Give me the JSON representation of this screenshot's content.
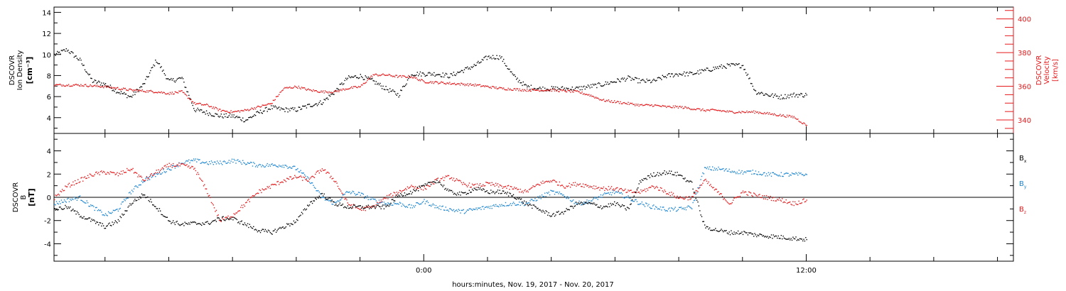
{
  "xlabel": "hours:minutes, Nov. 19, 2017 - Nov. 20, 2017",
  "colors": {
    "black": "#000000",
    "red": "#e41a1c",
    "blue": "#1c86d1"
  },
  "chart_data": [
    {
      "type": "scatter",
      "title": "",
      "ylabel_left": [
        "DSCOVR",
        "Ion Density",
        "[cm⁻³]"
      ],
      "ylabel_right": [
        "DSCOVR",
        "Velocity",
        "[km/s]"
      ],
      "x_unit": "hours relative to 00:00 Nov. 20, 2017",
      "xlim": [
        -11.6,
        18.5
      ],
      "x_ticks": [
        0,
        12
      ],
      "x_tick_labels": [
        "0:00",
        "12:00"
      ],
      "ylim_left": [
        2.5,
        14.5
      ],
      "y_ticks_left": [
        4,
        6,
        8,
        10,
        12,
        14
      ],
      "ylim_right": [
        332,
        407
      ],
      "y_ticks_right": [
        340,
        360,
        380,
        400
      ],
      "series": [
        {
          "name": "Ion Density",
          "axis": "left",
          "color": "#000000",
          "x": [
            -11.6,
            -11.2,
            -10.8,
            -10.4,
            -10.0,
            -9.6,
            -9.2,
            -8.8,
            -8.4,
            -8.0,
            -7.6,
            -7.2,
            -6.8,
            -6.4,
            -6.0,
            -5.6,
            -5.2,
            -4.8,
            -4.4,
            -4.0,
            -3.6,
            -3.2,
            -2.8,
            -2.4,
            -2.0,
            -1.6,
            -1.2,
            -0.8,
            -0.4,
            0.0,
            0.4,
            0.8,
            1.2,
            1.6,
            2.0,
            2.4,
            2.8,
            3.2,
            3.6,
            4.0,
            4.4,
            4.8,
            5.2,
            5.6,
            6.0,
            6.4,
            6.8,
            7.2,
            7.6,
            8.0,
            8.4,
            8.8,
            9.2,
            9.6,
            10.0,
            10.4,
            10.8,
            11.2,
            11.6,
            12.0
          ],
          "y": [
            10.0,
            10.5,
            9.5,
            7.5,
            7.2,
            6.5,
            6.0,
            7.2,
            9.5,
            7.5,
            7.8,
            4.8,
            4.5,
            4.2,
            4.2,
            3.8,
            4.5,
            5.0,
            4.8,
            4.8,
            5.2,
            5.5,
            6.5,
            7.8,
            8.0,
            7.5,
            6.8,
            6.2,
            8.2,
            8.2,
            8.2,
            8.0,
            8.5,
            9.0,
            9.8,
            9.8,
            8.0,
            7.0,
            6.8,
            6.8,
            6.8,
            6.8,
            7.0,
            7.2,
            7.5,
            7.8,
            7.5,
            7.5,
            8.0,
            8.2,
            8.2,
            8.5,
            8.8,
            9.0,
            9.0,
            6.5,
            6.2,
            6.0,
            6.2,
            6.2
          ]
        },
        {
          "name": "Velocity",
          "axis": "right",
          "color": "#e41a1c",
          "x": [
            -11.6,
            -10.8,
            -10.0,
            -9.2,
            -8.4,
            -8.0,
            -7.6,
            -7.2,
            -6.8,
            -6.4,
            -6.0,
            -5.6,
            -5.2,
            -4.8,
            -4.4,
            -4.0,
            -3.6,
            -3.2,
            -2.8,
            -2.4,
            -2.0,
            -1.6,
            -1.2,
            -0.8,
            -0.4,
            0.0,
            0.8,
            1.6,
            2.4,
            3.2,
            4.0,
            4.8,
            5.2,
            5.6,
            6.0,
            6.4,
            6.8,
            7.2,
            7.6,
            8.0,
            8.4,
            8.8,
            9.2,
            9.6,
            10.0,
            10.4,
            10.8,
            11.2,
            11.6,
            12.0
          ],
          "y": [
            361,
            361,
            360,
            358,
            357,
            356,
            357,
            350,
            349,
            346,
            345,
            346,
            348,
            350,
            359,
            360,
            358,
            357,
            357,
            359,
            360,
            367,
            367,
            366,
            366,
            363,
            362,
            361,
            359,
            358,
            358,
            357,
            355,
            352,
            351,
            350,
            349,
            349,
            348,
            348,
            347,
            346,
            346,
            345,
            345,
            345,
            344,
            343,
            342,
            337
          ]
        }
      ]
    },
    {
      "type": "scatter",
      "title": "",
      "ylabel_left": [
        "DSCOVR",
        "B",
        "[nT]"
      ],
      "x_unit": "hours relative to 00:00 Nov. 20, 2017",
      "xlim": [
        -11.6,
        18.5
      ],
      "x_ticks": [
        0,
        12
      ],
      "x_tick_labels": [
        "0:00",
        "12:00"
      ],
      "ylim": [
        -5.5,
        5.5
      ],
      "y_ticks": [
        -4,
        -2,
        0,
        2,
        4
      ],
      "zero_line": true,
      "legend": [
        {
          "label": "B",
          "sub": "x",
          "color": "#000000"
        },
        {
          "label": "B",
          "sub": "y",
          "color": "#1c86d1"
        },
        {
          "label": "B",
          "sub": "z",
          "color": "#e41a1c"
        }
      ],
      "series": [
        {
          "name": "Bx",
          "color": "#000000",
          "x": [
            -11.6,
            -11.2,
            -10.8,
            -10.4,
            -10.0,
            -9.6,
            -9.2,
            -8.8,
            -8.4,
            -8.0,
            -7.6,
            -7.2,
            -6.8,
            -6.4,
            -6.0,
            -5.6,
            -5.2,
            -4.8,
            -4.4,
            -4.0,
            -3.6,
            -3.2,
            -2.8,
            -2.4,
            -2.0,
            -1.6,
            -1.2,
            -0.8,
            -0.4,
            0.0,
            0.4,
            0.8,
            1.2,
            1.6,
            2.0,
            2.4,
            2.8,
            3.2,
            3.6,
            4.0,
            4.4,
            4.8,
            5.2,
            5.6,
            6.0,
            6.4,
            6.8,
            7.2,
            7.6,
            8.0,
            8.4,
            8.8,
            9.2,
            9.6,
            10.0,
            10.4,
            10.8,
            11.2,
            11.6,
            12.0
          ],
          "y": [
            -1.0,
            -0.8,
            -1.5,
            -2.0,
            -2.5,
            -2.0,
            -0.5,
            0.3,
            -0.8,
            -2.0,
            -2.3,
            -2.2,
            -2.2,
            -1.8,
            -1.8,
            -2.3,
            -2.8,
            -3.0,
            -2.5,
            -2.0,
            -0.5,
            0.3,
            -0.5,
            -0.8,
            -0.8,
            -0.8,
            -0.8,
            0.2,
            0.5,
            1.0,
            1.5,
            0.5,
            0.3,
            0.8,
            0.5,
            0.5,
            0.2,
            -0.5,
            -1.0,
            -1.5,
            -1.2,
            -0.5,
            -0.5,
            -0.8,
            -0.5,
            -1.0,
            1.5,
            2.0,
            2.2,
            2.0,
            1.2,
            -2.5,
            -2.8,
            -3.0,
            -3.0,
            -3.2,
            -3.3,
            -3.4,
            -3.5,
            -3.6
          ]
        },
        {
          "name": "By",
          "color": "#1c86d1",
          "x": [
            -11.6,
            -11.2,
            -10.8,
            -10.4,
            -10.0,
            -9.6,
            -9.2,
            -8.8,
            -8.4,
            -8.0,
            -7.6,
            -7.2,
            -6.8,
            -6.4,
            -6.0,
            -5.6,
            -5.2,
            -4.8,
            -4.4,
            -4.0,
            -3.6,
            -3.2,
            -2.8,
            -2.4,
            -2.0,
            -1.6,
            -1.2,
            -0.8,
            -0.4,
            0.0,
            0.4,
            0.8,
            1.2,
            1.6,
            2.0,
            2.4,
            2.8,
            3.2,
            3.6,
            4.0,
            4.4,
            4.8,
            5.2,
            5.6,
            6.0,
            6.4,
            6.8,
            7.2,
            7.6,
            8.0,
            8.4,
            8.8,
            9.2,
            9.6,
            10.0,
            10.4,
            10.8,
            11.2,
            11.6,
            12.0
          ],
          "y": [
            -0.5,
            -0.2,
            0.0,
            -0.8,
            -1.5,
            -1.0,
            0.5,
            1.5,
            2.0,
            2.5,
            3.0,
            3.2,
            3.0,
            3.0,
            3.2,
            3.0,
            2.8,
            2.8,
            2.8,
            2.5,
            1.5,
            0.0,
            -0.5,
            0.5,
            0.3,
            -0.2,
            -0.5,
            -0.5,
            -0.8,
            -0.3,
            -0.8,
            -1.0,
            -1.2,
            -1.0,
            -0.8,
            -0.6,
            -0.5,
            -0.5,
            0.0,
            0.5,
            0.2,
            -0.5,
            -0.3,
            0.2,
            0.5,
            0.0,
            -0.5,
            -0.8,
            -1.0,
            -1.0,
            -0.8,
            2.5,
            2.5,
            2.3,
            2.2,
            2.2,
            2.0,
            2.0,
            2.0,
            2.0
          ]
        },
        {
          "name": "Bz",
          "color": "#e41a1c",
          "x": [
            -11.6,
            -11.2,
            -10.8,
            -10.4,
            -10.0,
            -9.6,
            -9.2,
            -8.8,
            -8.4,
            -8.0,
            -7.6,
            -7.2,
            -6.8,
            -6.4,
            -6.0,
            -5.6,
            -5.2,
            -4.8,
            -4.4,
            -4.0,
            -3.6,
            -3.2,
            -2.8,
            -2.4,
            -2.0,
            -1.6,
            -1.2,
            -0.8,
            -0.4,
            0.0,
            0.4,
            0.8,
            1.2,
            1.6,
            2.0,
            2.4,
            2.8,
            3.2,
            3.6,
            4.0,
            4.4,
            4.8,
            5.2,
            5.6,
            6.0,
            6.4,
            6.8,
            7.2,
            7.6,
            8.0,
            8.4,
            8.8,
            9.2,
            9.6,
            10.0,
            10.4,
            10.8,
            11.2,
            11.6,
            12.0
          ],
          "y": [
            0.0,
            1.0,
            1.5,
            2.0,
            2.2,
            2.0,
            2.5,
            1.5,
            2.2,
            2.8,
            2.8,
            2.5,
            0.5,
            -2.0,
            -1.5,
            -0.5,
            0.5,
            1.0,
            1.5,
            1.8,
            1.5,
            2.5,
            1.5,
            -0.5,
            -1.0,
            -0.8,
            0.0,
            0.5,
            1.0,
            0.8,
            1.5,
            1.8,
            1.2,
            1.0,
            1.2,
            1.0,
            0.8,
            0.5,
            1.2,
            1.5,
            1.0,
            1.2,
            1.0,
            0.8,
            0.8,
            0.5,
            0.5,
            1.0,
            0.5,
            0.0,
            0.0,
            1.5,
            0.5,
            -0.5,
            0.5,
            0.2,
            0.0,
            -0.2,
            -0.5,
            -0.2
          ]
        }
      ]
    }
  ]
}
